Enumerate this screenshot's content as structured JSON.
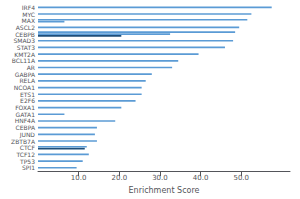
{
  "chart_data": {
    "type": "bar",
    "orientation": "horizontal",
    "categories": [
      "IRF4",
      "MYC",
      "MAX",
      "ASCL2",
      "CEBPB",
      "SMAD3",
      "STAT3",
      "KMT2A",
      "BCL11A",
      "AR",
      "GABPA",
      "RELA",
      "NCOA1",
      "ETS1",
      "E2F6",
      "FOXA1",
      "GATA1",
      "HNF4A",
      "CEBPA",
      "JUND",
      "ZBTB7A",
      "CTCF",
      "TCF12",
      "TP53",
      "SPI1"
    ],
    "values": [
      [
        57.5
      ],
      [
        52.5
      ],
      [
        6.5,
        51.5
      ],
      [
        49.5
      ],
      [
        20.5,
        32.5,
        48.5
      ],
      [
        48.0
      ],
      [
        46.0
      ],
      [
        39.5
      ],
      [
        34.5
      ],
      [
        33.0
      ],
      [
        28.0
      ],
      [
        26.5
      ],
      [
        25.5
      ],
      [
        25.5
      ],
      [
        24.0
      ],
      [
        20.5
      ],
      [
        6.5
      ],
      [
        19.0
      ],
      [
        14.5
      ],
      [
        14.0
      ],
      [
        14.5
      ],
      [
        11.5,
        12.0
      ],
      [
        12.5
      ],
      [
        11.0
      ],
      [
        9.5
      ]
    ],
    "colors": [
      [
        "#5B9BD5"
      ],
      [
        "#5B9BD5"
      ],
      [
        "#5B9BD5",
        "#5B9BD5"
      ],
      [
        "#5B9BD5"
      ],
      [
        "#1F4E79",
        "#5B9BD5",
        "#5B9BD5"
      ],
      [
        "#5B9BD5"
      ],
      [
        "#5B9BD5"
      ],
      [
        "#5B9BD5"
      ],
      [
        "#5B9BD5"
      ],
      [
        "#5B9BD5"
      ],
      [
        "#5B9BD5"
      ],
      [
        "#5B9BD5"
      ],
      [
        "#5B9BD5"
      ],
      [
        "#5B9BD5"
      ],
      [
        "#5B9BD5"
      ],
      [
        "#5B9BD5"
      ],
      [
        "#5B9BD5"
      ],
      [
        "#5B9BD5"
      ],
      [
        "#5B9BD5"
      ],
      [
        "#5B9BD5"
      ],
      [
        "#5B9BD5"
      ],
      [
        "#1F4E79",
        "#5B9BD5"
      ],
      [
        "#5B9BD5"
      ],
      [
        "#5B9BD5"
      ],
      [
        "#5B9BD5"
      ]
    ],
    "xlabel": "Enrichment Score",
    "xlim": [
      0,
      62
    ],
    "xticks": [
      {
        "value": 10.0,
        "label": "10.0"
      },
      {
        "value": 20.0,
        "label": "20.0"
      },
      {
        "value": 30.0,
        "label": "30.0"
      },
      {
        "value": 40.0,
        "label": "40.0"
      },
      {
        "value": 50.0,
        "label": "50.0"
      }
    ],
    "grid": false
  }
}
